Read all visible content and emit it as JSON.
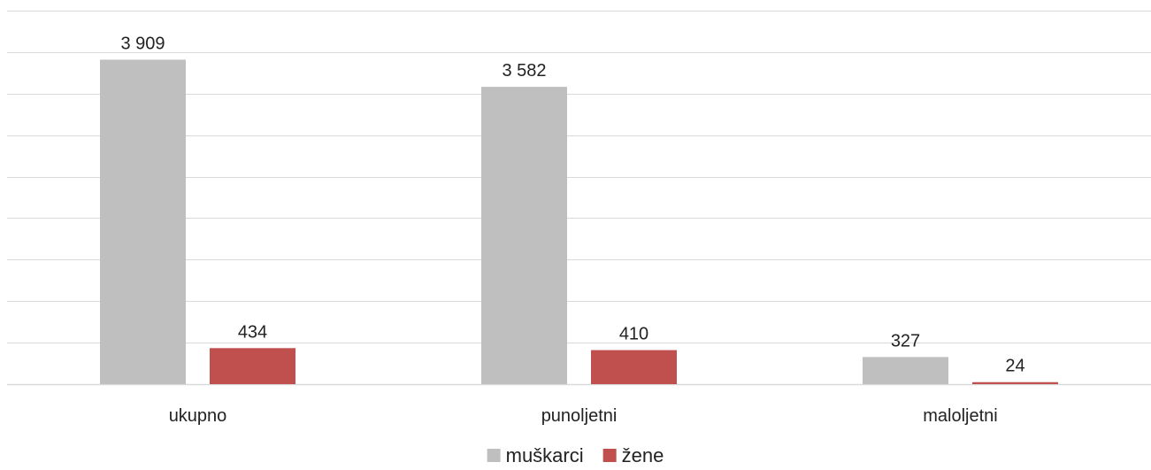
{
  "chart_data": {
    "type": "bar",
    "categories": [
      "ukupno",
      "punoljetni",
      "maloljetni"
    ],
    "series": [
      {
        "name": "muškarci",
        "values": [
          3909,
          3582,
          327
        ],
        "labels": [
          "3 909",
          "3 582",
          "327"
        ],
        "color": "#bfbfbf"
      },
      {
        "name": "žene",
        "values": [
          434,
          410,
          24
        ],
        "labels": [
          "434",
          "410",
          "24"
        ],
        "color": "#c0504d"
      }
    ],
    "ylim": [
      0,
      4500
    ],
    "grid": true,
    "legend": "bottom-center",
    "title": "",
    "xlabel": "",
    "ylabel": ""
  }
}
